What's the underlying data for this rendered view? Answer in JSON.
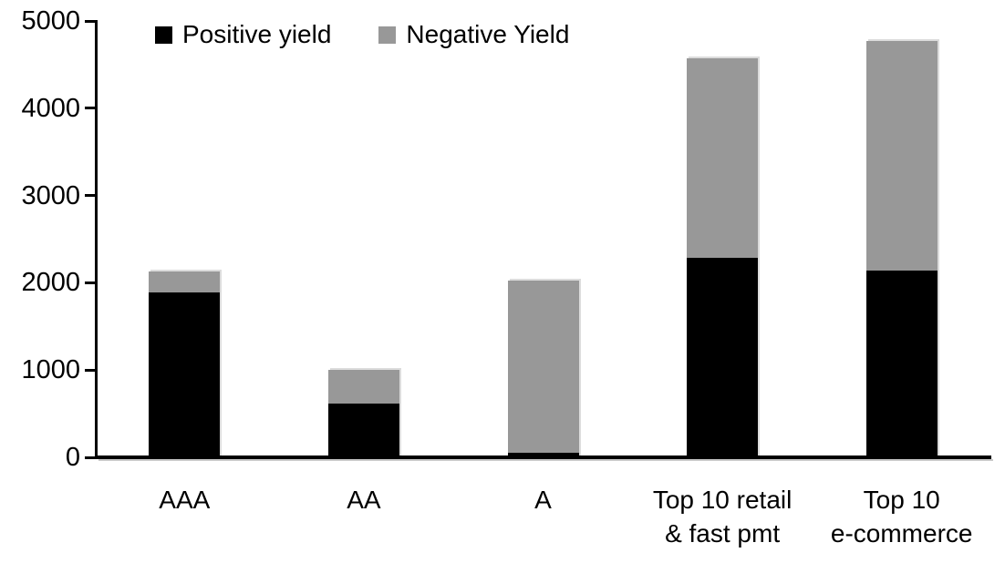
{
  "chart_data": {
    "type": "bar",
    "stacked": true,
    "title": "",
    "xlabel": "",
    "ylabel": "",
    "categories": [
      "AAA",
      "AA",
      "A",
      "Top 10 retail & fast pmt",
      "Top 10 e-commerce"
    ],
    "category_label_lines": [
      [
        "AAA"
      ],
      [
        "AA"
      ],
      [
        "A"
      ],
      [
        "Top 10 retail",
        "& fast pmt"
      ],
      [
        "Top 10",
        "e-commerce"
      ]
    ],
    "series": [
      {
        "name": "Positive yield",
        "color": "#000000",
        "values": [
          1890,
          620,
          50,
          2290,
          2140
        ]
      },
      {
        "name": "Negative Yield",
        "color": "#989898",
        "values": [
          240,
          380,
          1980,
          2280,
          2630
        ]
      }
    ],
    "totals": [
      2130,
      1000,
      2030,
      4570,
      4770
    ],
    "ylim": [
      0,
      5000
    ],
    "yticks": [
      0,
      1000,
      2000,
      3000,
      4000,
      5000
    ],
    "legend_position": "top",
    "grid": false,
    "axis_color": "#000000",
    "shadow_color": "#dcdcdc",
    "background_color": "#ffffff"
  }
}
